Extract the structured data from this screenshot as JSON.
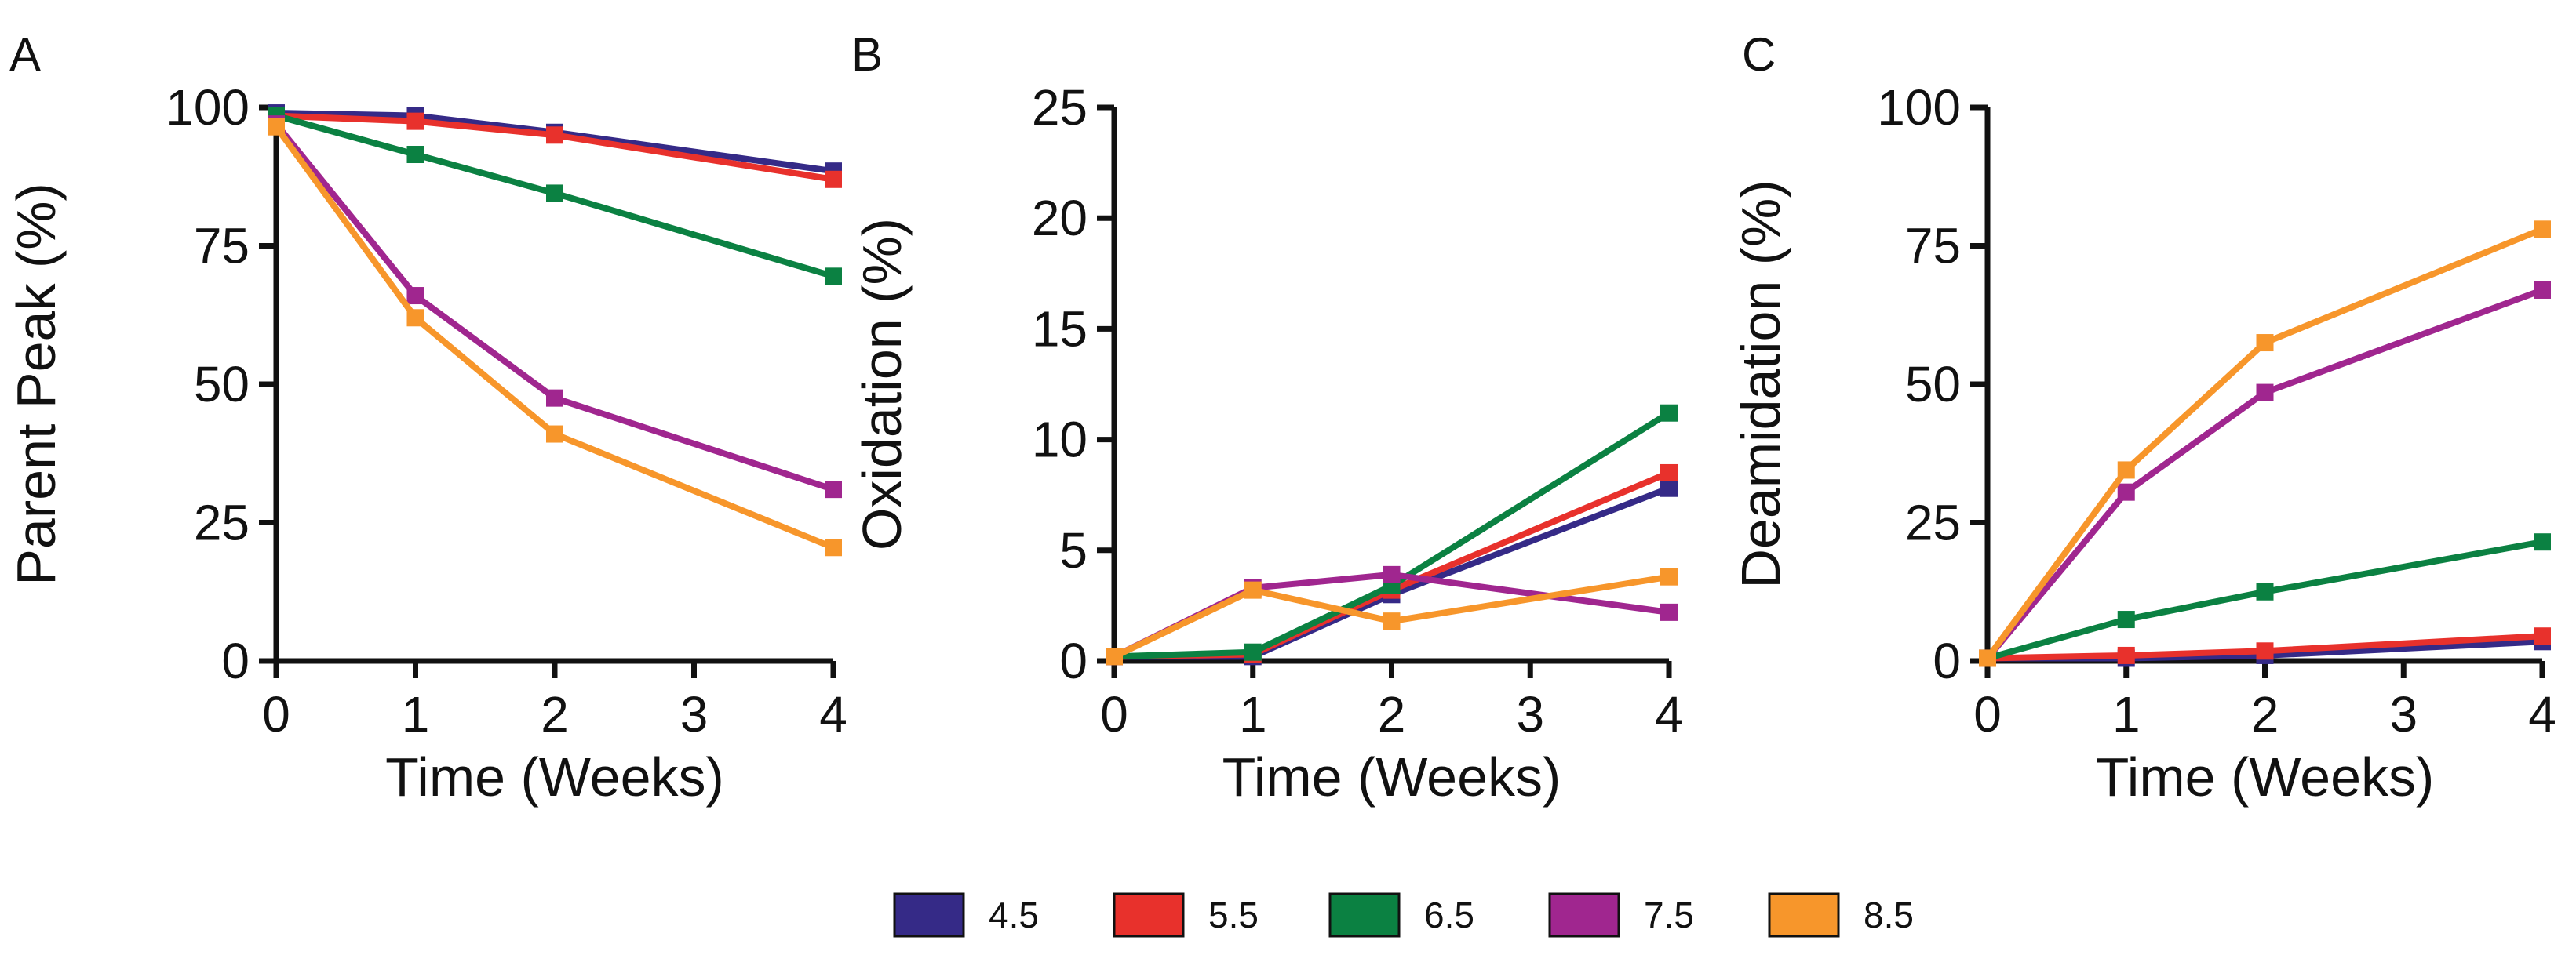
{
  "legend": [
    {
      "label": "4.5",
      "color": "#352a87"
    },
    {
      "label": "5.5",
      "color": "#e8312c"
    },
    {
      "label": "6.5",
      "color": "#0b8142"
    },
    {
      "label": "7.5",
      "color": "#a0268f"
    },
    {
      "label": "8.5",
      "color": "#f7962b"
    }
  ],
  "chart_data": [
    {
      "panel": "A",
      "type": "line",
      "ylabel": "Parent Peak (%)",
      "xlabel": "Time (Weeks)",
      "xlim": [
        0,
        4
      ],
      "ylim": [
        0,
        100
      ],
      "xticks": [
        0,
        1,
        2,
        3,
        4
      ],
      "yticks": [
        0,
        25,
        50,
        75,
        100
      ],
      "x": [
        0,
        1,
        2,
        4
      ],
      "series": [
        {
          "name": "4.5",
          "color": "#352a87",
          "values": [
            99,
            98.5,
            95.5,
            88.5
          ]
        },
        {
          "name": "5.5",
          "color": "#e8312c",
          "values": [
            98.5,
            97.5,
            95,
            87
          ]
        },
        {
          "name": "6.5",
          "color": "#0b8142",
          "values": [
            98.5,
            91.5,
            84.5,
            69.5
          ]
        },
        {
          "name": "7.5",
          "color": "#a0268f",
          "values": [
            97,
            66,
            47.5,
            31
          ]
        },
        {
          "name": "8.5",
          "color": "#f7962b",
          "values": [
            96.5,
            62,
            41,
            20.5
          ]
        }
      ]
    },
    {
      "panel": "B",
      "type": "line",
      "ylabel": "Oxidation (%)",
      "xlabel": "Time (Weeks)",
      "xlim": [
        0,
        4
      ],
      "ylim": [
        0,
        25
      ],
      "xticks": [
        0,
        1,
        2,
        3,
        4
      ],
      "yticks": [
        0,
        5,
        10,
        15,
        20,
        25
      ],
      "x": [
        0,
        1,
        2,
        4
      ],
      "series": [
        {
          "name": "4.5",
          "color": "#352a87",
          "values": [
            0.2,
            0.2,
            3.0,
            7.8
          ]
        },
        {
          "name": "5.5",
          "color": "#e8312c",
          "values": [
            0.2,
            0.3,
            3.2,
            8.5
          ]
        },
        {
          "name": "6.5",
          "color": "#0b8142",
          "values": [
            0.2,
            0.4,
            3.4,
            11.2
          ]
        },
        {
          "name": "7.5",
          "color": "#a0268f",
          "values": [
            0.2,
            3.3,
            3.9,
            2.2
          ]
        },
        {
          "name": "8.5",
          "color": "#f7962b",
          "values": [
            0.2,
            3.2,
            1.8,
            3.8
          ]
        }
      ]
    },
    {
      "panel": "C",
      "type": "line",
      "ylabel": "Deamidation (%)",
      "xlabel": "Time (Weeks)",
      "xlim": [
        0,
        4
      ],
      "ylim": [
        0,
        100
      ],
      "xticks": [
        0,
        1,
        2,
        3,
        4
      ],
      "yticks": [
        0,
        25,
        50,
        75,
        100
      ],
      "x": [
        0,
        1,
        2,
        4
      ],
      "series": [
        {
          "name": "4.5",
          "color": "#352a87",
          "values": [
            0.5,
            0.5,
            1.0,
            3.5
          ]
        },
        {
          "name": "5.5",
          "color": "#e8312c",
          "values": [
            0.5,
            1.0,
            1.8,
            4.5
          ]
        },
        {
          "name": "6.5",
          "color": "#0b8142",
          "values": [
            0.5,
            7.5,
            12.5,
            21.5
          ]
        },
        {
          "name": "7.5",
          "color": "#a0268f",
          "values": [
            0.5,
            30.5,
            48.5,
            67
          ]
        },
        {
          "name": "8.5",
          "color": "#f7962b",
          "values": [
            0.5,
            34.5,
            57.5,
            78
          ]
        }
      ]
    }
  ]
}
